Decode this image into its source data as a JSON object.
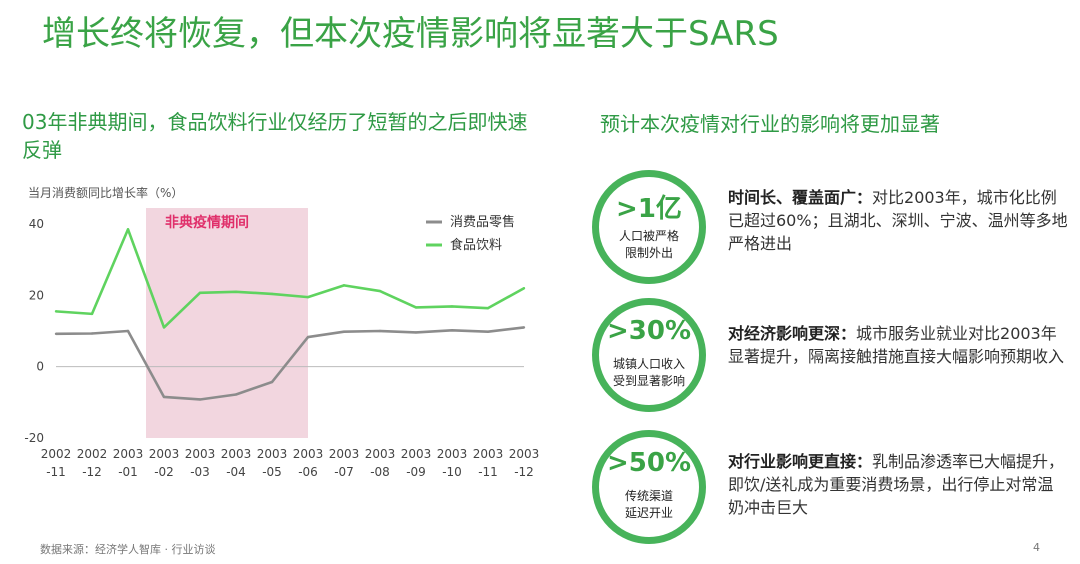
{
  "slide": {
    "title": "增长终将恢复，但本次疫情影响将显著大于SARS",
    "page_number": "4",
    "source": "数据来源：经济学人智库 · 行业访谈"
  },
  "left_panel": {
    "heading": "03年非典期间，食品饮料行业仅经历了短暂的之后即快速反弹"
  },
  "right_panel": {
    "heading": "预计本次疫情对行业的影响将更加显著",
    "stats": [
      {
        "value": ">1亿",
        "caption": "人口被严格\n限制外出",
        "desc_bold": "时间长、覆盖面广：",
        "desc_text": "对比2003年，城市化比例已超过60%；且湖北、深圳、宁波、温州等多地严格进出"
      },
      {
        "value": ">30%",
        "caption": "城镇人口收入\n受到显著影响",
        "desc_bold": "对经济影响更深：",
        "desc_text": "城市服务业就业对比2003年显著提升，隔离接触措施直接大幅影响预期收入"
      },
      {
        "value": ">50%",
        "caption": "传统渠道\n延迟开业",
        "desc_bold": "对行业影响更直接：",
        "desc_text": "乳制品渗透率已大幅提升，即饮/送礼成为重要消费场景，出行停止对常温奶冲击巨大"
      }
    ]
  },
  "chart_data": {
    "type": "line",
    "ylabel": "当月消费额同比增长率（%）",
    "ylim": [
      -20,
      40
    ],
    "yticks": [
      -20,
      0,
      20,
      40
    ],
    "categories": [
      [
        "2002",
        "-11"
      ],
      [
        "2002",
        "-12"
      ],
      [
        "2003",
        "-01"
      ],
      [
        "2003",
        "-02"
      ],
      [
        "2003",
        "-03"
      ],
      [
        "2003",
        "-04"
      ],
      [
        "2003",
        "-05"
      ],
      [
        "2003",
        "-06"
      ],
      [
        "2003",
        "-07"
      ],
      [
        "2003",
        "-08"
      ],
      [
        "2003",
        "-09"
      ],
      [
        "2003",
        "-10"
      ],
      [
        "2003",
        "-11"
      ],
      [
        "2003",
        "-12"
      ]
    ],
    "series": [
      {
        "name": "消费品零售",
        "color": "#8c8c8c",
        "values": [
          9.2,
          9.3,
          10.0,
          -8.5,
          -9.2,
          -7.8,
          -4.3,
          8.3,
          9.8,
          10.0,
          9.6,
          10.2,
          9.8,
          11.0
        ]
      },
      {
        "name": "食品饮料",
        "color": "#5fd35f",
        "values": [
          15.5,
          14.8,
          38.5,
          11.0,
          20.7,
          21.0,
          20.4,
          19.5,
          22.8,
          21.2,
          16.6,
          16.9,
          16.4,
          22.0
        ]
      }
    ],
    "highlight": {
      "label": "非典疫情期间",
      "from_index": 3,
      "to_index": 7,
      "color": "#f2d6df",
      "label_color": "#e0306b"
    },
    "legend_position": "top-right",
    "grid": false
  }
}
